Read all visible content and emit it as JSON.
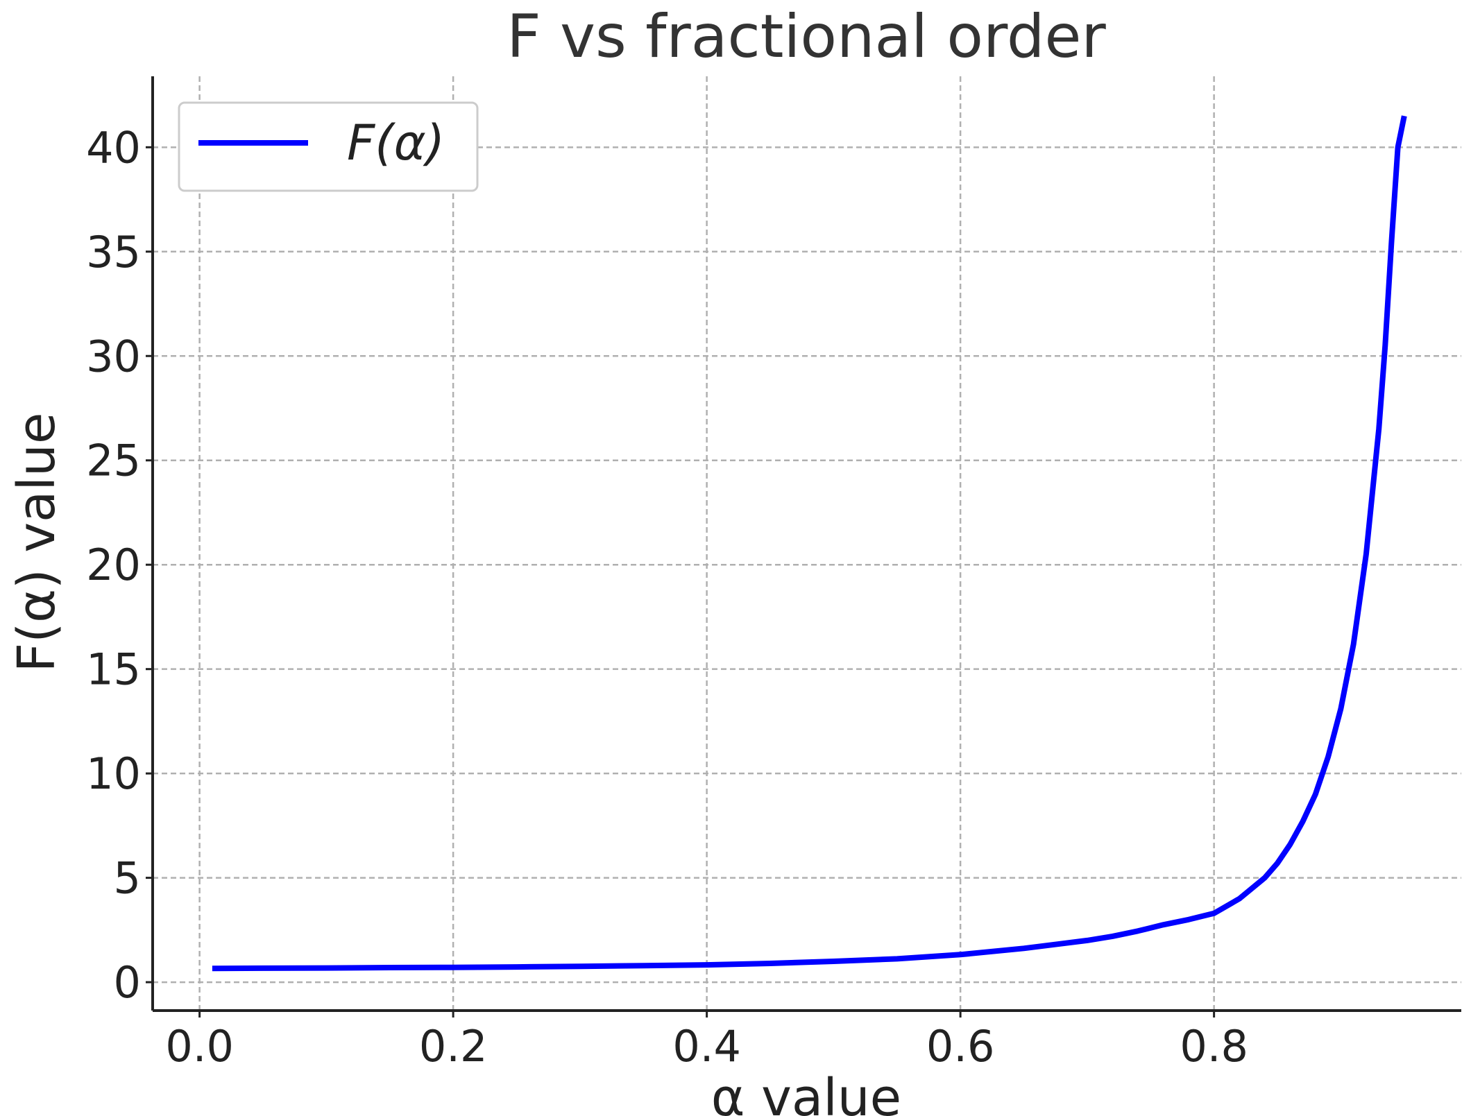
{
  "chart_data": {
    "type": "line",
    "title": "F vs fractional order",
    "xlabel": "α value",
    "ylabel": "F(α) value",
    "xlim": [
      -0.037,
      0.995
    ],
    "ylim": [
      -1.36,
      43.4
    ],
    "xticks": [
      0.0,
      0.2,
      0.4,
      0.6,
      0.8
    ],
    "xtick_labels": [
      "0.0",
      "0.2",
      "0.4",
      "0.6",
      "0.8"
    ],
    "yticks": [
      0,
      5,
      10,
      15,
      20,
      25,
      30,
      35,
      40
    ],
    "ytick_labels": [
      "0",
      "5",
      "10",
      "15",
      "20",
      "25",
      "30",
      "35",
      "40"
    ],
    "grid": true,
    "legend_position": "upper-left",
    "series": [
      {
        "name": "F(α)",
        "color": "#0000ff",
        "x": [
          0.01,
          0.05,
          0.1,
          0.15,
          0.2,
          0.25,
          0.3,
          0.35,
          0.4,
          0.45,
          0.5,
          0.55,
          0.6,
          0.65,
          0.7,
          0.72,
          0.74,
          0.76,
          0.78,
          0.8,
          0.82,
          0.84,
          0.85,
          0.86,
          0.87,
          0.88,
          0.89,
          0.9,
          0.91,
          0.92,
          0.93,
          0.935,
          0.94,
          0.945,
          0.95
        ],
        "y": [
          0.66,
          0.67,
          0.68,
          0.7,
          0.71,
          0.73,
          0.76,
          0.79,
          0.83,
          0.9,
          1.0,
          1.12,
          1.32,
          1.62,
          2.0,
          2.2,
          2.45,
          2.75,
          3.0,
          3.3,
          4.0,
          5.0,
          5.7,
          6.6,
          7.7,
          9.0,
          10.8,
          13.1,
          16.2,
          20.5,
          26.5,
          30.5,
          35.5,
          40.0,
          41.5
        ]
      }
    ]
  }
}
